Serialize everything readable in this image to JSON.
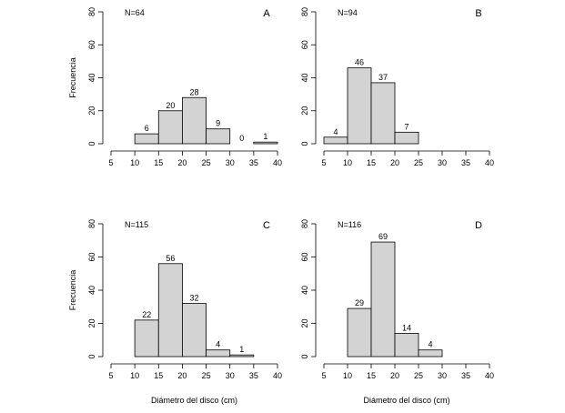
{
  "colors": {
    "bar_fill": "#d3d3d3",
    "bar_stroke": "#000000",
    "axis": "#000000"
  },
  "chart_data": [
    {
      "type": "bar",
      "panel": "A",
      "n_label": "N=64",
      "bin_edges": [
        10,
        15,
        20,
        25,
        30,
        35,
        40
      ],
      "values": [
        6,
        20,
        28,
        9,
        0,
        1
      ],
      "value_labels": [
        "6",
        "20",
        "28",
        "9",
        "0",
        "1"
      ],
      "xlim": [
        5,
        40
      ],
      "ylim": [
        0,
        80
      ],
      "xticks": [
        "5",
        "10",
        "15",
        "20",
        "25",
        "30",
        "35",
        "40"
      ],
      "yticks": [
        "0",
        "20",
        "40",
        "60",
        "80"
      ],
      "xlabel": "",
      "ylabel": "Frecuencia"
    },
    {
      "type": "bar",
      "panel": "B",
      "n_label": "N=94",
      "bin_edges": [
        5,
        10,
        15,
        20,
        25
      ],
      "values": [
        4,
        46,
        37,
        7
      ],
      "value_labels": [
        "4",
        "46",
        "37",
        "7"
      ],
      "xlim": [
        5,
        40
      ],
      "ylim": [
        0,
        80
      ],
      "xticks": [
        "5",
        "10",
        "15",
        "20",
        "25",
        "30",
        "35",
        "40"
      ],
      "yticks": [
        "0",
        "20",
        "40",
        "60",
        "80"
      ],
      "xlabel": "",
      "ylabel": ""
    },
    {
      "type": "bar",
      "panel": "C",
      "n_label": "N=115",
      "bin_edges": [
        10,
        15,
        20,
        25,
        30,
        35
      ],
      "values": [
        22,
        56,
        32,
        4,
        1
      ],
      "value_labels": [
        "22",
        "56",
        "32",
        "4",
        "1"
      ],
      "xlim": [
        5,
        40
      ],
      "ylim": [
        0,
        80
      ],
      "xticks": [
        "5",
        "10",
        "15",
        "20",
        "25",
        "30",
        "35",
        "40"
      ],
      "yticks": [
        "0",
        "20",
        "40",
        "60",
        "80"
      ],
      "xlabel": "Diámetro del disco (cm)",
      "ylabel": "Frecuencia"
    },
    {
      "type": "bar",
      "panel": "D",
      "n_label": "N=116",
      "bin_edges": [
        10,
        15,
        20,
        25,
        30
      ],
      "values": [
        29,
        69,
        14,
        4
      ],
      "value_labels": [
        "29",
        "69",
        "14",
        "4"
      ],
      "xlim": [
        5,
        40
      ],
      "ylim": [
        0,
        80
      ],
      "xticks": [
        "5",
        "10",
        "15",
        "20",
        "25",
        "30",
        "35",
        "40"
      ],
      "yticks": [
        "0",
        "20",
        "40",
        "60",
        "80"
      ],
      "xlabel": "Diámetro del disco (cm)",
      "ylabel": ""
    }
  ]
}
